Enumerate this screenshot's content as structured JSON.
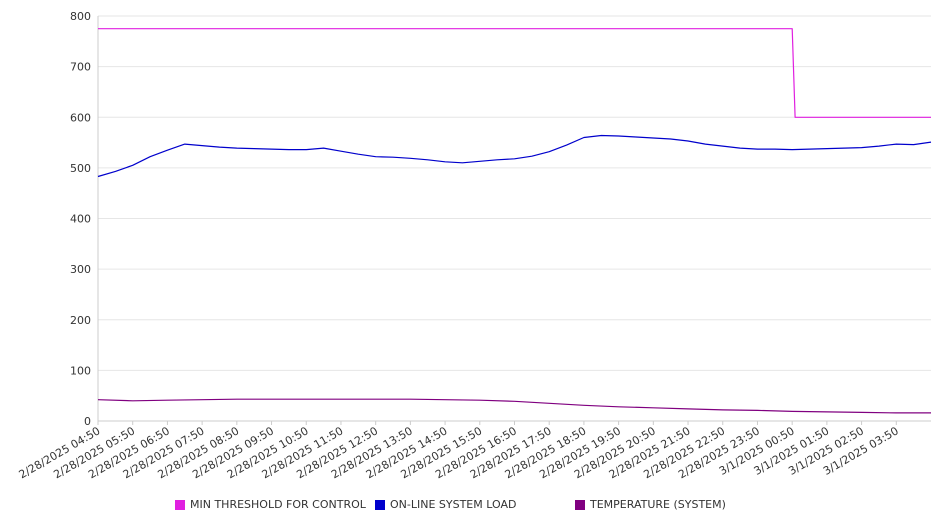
{
  "chart_data": {
    "type": "line",
    "title": "",
    "xlabel": "",
    "ylabel": "",
    "ylim": [
      0,
      800
    ],
    "grid": true,
    "legend_position": "bottom",
    "y_ticks": [
      0,
      100,
      200,
      300,
      400,
      500,
      600,
      700,
      800
    ],
    "categories": [
      "2/28/2025 04:50",
      "2/28/2025 05:50",
      "2/28/2025 06:50",
      "2/28/2025 07:50",
      "2/28/2025 08:50",
      "2/28/2025 09:50",
      "2/28/2025 10:50",
      "2/28/2025 11:50",
      "2/28/2025 12:50",
      "2/28/2025 13:50",
      "2/28/2025 14:50",
      "2/28/2025 15:50",
      "2/28/2025 16:50",
      "2/28/2025 17:50",
      "2/28/2025 18:50",
      "2/28/2025 19:50",
      "2/28/2025 20:50",
      "2/28/2025 21:50",
      "2/28/2025 22:50",
      "2/28/2025 23:50",
      "3/1/2025 00:50",
      "3/1/2025 01:50",
      "3/1/2025 02:50",
      "3/1/2025 03:50"
    ],
    "x_end": "3/1/2025 04:50",
    "series": [
      {
        "name": "MIN THRESHOLD FOR CONTROL",
        "color": "#e020e0",
        "points": [
          [
            "2/28/2025 04:50",
            775
          ],
          [
            "3/1/2025 00:50",
            775
          ],
          [
            "3/1/2025 00:55",
            600
          ],
          [
            "3/1/2025 04:50",
            600
          ]
        ]
      },
      {
        "name": "ON-LINE SYSTEM LOAD",
        "color": "#0000cc",
        "points": [
          [
            "2/28/2025 04:50",
            483
          ],
          [
            "2/28/2025 05:20",
            493
          ],
          [
            "2/28/2025 05:50",
            505
          ],
          [
            "2/28/2025 06:20",
            522
          ],
          [
            "2/28/2025 06:50",
            535
          ],
          [
            "2/28/2025 07:20",
            547
          ],
          [
            "2/28/2025 07:50",
            544
          ],
          [
            "2/28/2025 08:20",
            541
          ],
          [
            "2/28/2025 08:50",
            539
          ],
          [
            "2/28/2025 09:20",
            538
          ],
          [
            "2/28/2025 09:50",
            537
          ],
          [
            "2/28/2025 10:20",
            536
          ],
          [
            "2/28/2025 10:50",
            536
          ],
          [
            "2/28/2025 11:20",
            539
          ],
          [
            "2/28/2025 11:50",
            533
          ],
          [
            "2/28/2025 12:20",
            527
          ],
          [
            "2/28/2025 12:50",
            522
          ],
          [
            "2/28/2025 13:20",
            521
          ],
          [
            "2/28/2025 13:50",
            519
          ],
          [
            "2/28/2025 14:20",
            516
          ],
          [
            "2/28/2025 14:50",
            512
          ],
          [
            "2/28/2025 15:20",
            510
          ],
          [
            "2/28/2025 15:50",
            513
          ],
          [
            "2/28/2025 16:20",
            516
          ],
          [
            "2/28/2025 16:50",
            518
          ],
          [
            "2/28/2025 17:20",
            523
          ],
          [
            "2/28/2025 17:50",
            532
          ],
          [
            "2/28/2025 18:20",
            545
          ],
          [
            "2/28/2025 18:50",
            560
          ],
          [
            "2/28/2025 19:20",
            564
          ],
          [
            "2/28/2025 19:50",
            563
          ],
          [
            "2/28/2025 20:20",
            561
          ],
          [
            "2/28/2025 20:50",
            559
          ],
          [
            "2/28/2025 21:20",
            557
          ],
          [
            "2/28/2025 21:50",
            553
          ],
          [
            "2/28/2025 22:20",
            547
          ],
          [
            "2/28/2025 22:50",
            543
          ],
          [
            "2/28/2025 23:20",
            539
          ],
          [
            "2/28/2025 23:50",
            537
          ],
          [
            "3/1/2025 00:20",
            537
          ],
          [
            "3/1/2025 00:50",
            536
          ],
          [
            "3/1/2025 01:20",
            537
          ],
          [
            "3/1/2025 01:50",
            538
          ],
          [
            "3/1/2025 02:20",
            539
          ],
          [
            "3/1/2025 02:50",
            540
          ],
          [
            "3/1/2025 03:20",
            543
          ],
          [
            "3/1/2025 03:50",
            547
          ],
          [
            "3/1/2025 04:20",
            546
          ],
          [
            "3/1/2025 04:50",
            551
          ]
        ]
      },
      {
        "name": "TEMPERATURE (SYSTEM)",
        "color": "#800080",
        "points": [
          [
            "2/28/2025 04:50",
            42
          ],
          [
            "2/28/2025 05:50",
            40
          ],
          [
            "2/28/2025 06:50",
            41
          ],
          [
            "2/28/2025 07:50",
            42
          ],
          [
            "2/28/2025 08:50",
            43
          ],
          [
            "2/28/2025 09:50",
            43
          ],
          [
            "2/28/2025 10:50",
            43
          ],
          [
            "2/28/2025 11:50",
            43
          ],
          [
            "2/28/2025 12:50",
            43
          ],
          [
            "2/28/2025 13:50",
            43
          ],
          [
            "2/28/2025 14:50",
            42
          ],
          [
            "2/28/2025 15:50",
            41
          ],
          [
            "2/28/2025 16:50",
            39
          ],
          [
            "2/28/2025 17:50",
            35
          ],
          [
            "2/28/2025 18:50",
            31
          ],
          [
            "2/28/2025 19:50",
            28
          ],
          [
            "2/28/2025 20:50",
            26
          ],
          [
            "2/28/2025 21:50",
            24
          ],
          [
            "2/28/2025 22:50",
            22
          ],
          [
            "2/28/2025 23:50",
            21
          ],
          [
            "3/1/2025 00:50",
            19
          ],
          [
            "3/1/2025 01:50",
            18
          ],
          [
            "3/1/2025 02:50",
            17
          ],
          [
            "3/1/2025 03:50",
            16
          ],
          [
            "3/1/2025 04:50",
            16
          ]
        ]
      }
    ]
  },
  "legend": {
    "items": [
      {
        "label": "MIN THRESHOLD FOR CONTROL",
        "color": "#e020e0"
      },
      {
        "label": "ON-LINE SYSTEM LOAD",
        "color": "#0000cc"
      },
      {
        "label": "TEMPERATURE (SYSTEM)",
        "color": "#800080"
      }
    ]
  }
}
